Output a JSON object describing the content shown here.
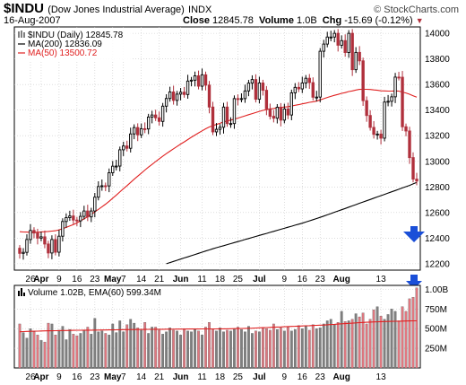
{
  "header": {
    "symbol": "$INDU",
    "name": "(Dow Jones Industrial Average)",
    "exchange": "INDX",
    "date": "16-Aug-2007",
    "close_label": "Close",
    "close_value": "12845.78",
    "volume_label": "Volume",
    "volume_value": "1.0B",
    "chg_label": "Chg",
    "chg_value": "-15.69 (-0.12%)",
    "brand": "© StockCharts.com"
  },
  "legend": {
    "price": "$INDU (Daily) 12845.78",
    "ma200": "MA(200) 12836.09",
    "ma50": "MA(50) 13500.72",
    "volume": "Volume 1.02B, EMA(60) 599.34M"
  },
  "colors": {
    "up": "#000000",
    "down": "#b0303c",
    "ma50": "#e02020",
    "ma200": "#000000",
    "vol_up": "#808080",
    "vol_down": "#e07880",
    "arrow": "#1a4fd8",
    "grid": "#c8c8c8"
  },
  "chart_data": [
    {
      "type": "candlestick",
      "title": "$INDU (Daily) 12845.78",
      "y_ticks": [
        12200,
        12400,
        12600,
        12800,
        13000,
        13200,
        13400,
        13600,
        13800,
        14000
      ],
      "ylim": [
        12150,
        14050
      ],
      "x_ticks": [
        "26",
        "Apr",
        "9",
        "16",
        "23",
        "May",
        "7",
        "14",
        "21",
        "Jun",
        "11",
        "18",
        "25",
        "Jul",
        "9",
        "16",
        "23",
        "Aug",
        "13"
      ],
      "x_tick_months": [
        "Apr",
        "May",
        "Jun",
        "Jul",
        "Aug"
      ],
      "close": [
        12281,
        12289,
        12389,
        12460,
        12440,
        12400,
        12410,
        12354,
        12284,
        12389,
        12290,
        12415,
        12530,
        12560,
        12573,
        12541,
        12535,
        12570,
        12612,
        12566,
        12612,
        12720,
        12803,
        12809,
        12808,
        12911,
        12962,
        12963,
        13090,
        13120,
        13102,
        13214,
        13264,
        13207,
        13255,
        13253,
        13346,
        13362,
        13340,
        13312,
        13431,
        13491,
        13542,
        13476,
        13525,
        13540,
        13522,
        13627,
        13634,
        13668,
        13587,
        13676,
        13595,
        13424,
        13230,
        13250,
        13266,
        13424,
        13295,
        13295,
        13490,
        13486,
        13490,
        13550,
        13611,
        13639,
        13485,
        13612,
        13555,
        13410,
        13352,
        13337,
        13422,
        13322,
        13409,
        13362,
        13535,
        13578,
        13566,
        13612,
        13649,
        13615,
        13501,
        13502,
        13860,
        13916,
        13971,
        13971,
        14000,
        13907,
        13943,
        13850,
        14000,
        13716,
        13851,
        13785,
        13474,
        13358,
        13265,
        13211,
        13213,
        13181,
        13463,
        13469,
        13504,
        13658,
        13657,
        13270,
        13237,
        13029,
        12861,
        12846
      ],
      "ma50": [
        12450,
        12448,
        12447,
        12445,
        12446,
        12446,
        12449,
        12450,
        12452,
        12455,
        12458,
        12465,
        12474,
        12484,
        12495,
        12506,
        12520,
        12534,
        12550,
        12567,
        12585,
        12605,
        12625,
        12645,
        12665,
        12688,
        12712,
        12736,
        12761,
        12786,
        12810,
        12835,
        12860,
        12884,
        12908,
        12932,
        12955,
        12976,
        12998,
        13019,
        13040,
        13060,
        13079,
        13098,
        13116,
        13135,
        13152,
        13170,
        13188,
        13205,
        13222,
        13238,
        13254,
        13268,
        13279,
        13288,
        13297,
        13308,
        13315,
        13322,
        13330,
        13338,
        13346,
        13355,
        13364,
        13373,
        13381,
        13390,
        13398,
        13404,
        13409,
        13413,
        13418,
        13421,
        13424,
        13427,
        13432,
        13438,
        13443,
        13449,
        13455,
        13461,
        13465,
        13470,
        13480,
        13489,
        13499,
        13507,
        13516,
        13523,
        13531,
        13537,
        13545,
        13550,
        13557,
        13562,
        13563,
        13563,
        13561,
        13558,
        13555,
        13551,
        13550,
        13549,
        13549,
        13550,
        13549,
        13541,
        13534,
        13524,
        13512,
        13501
      ],
      "ma200": [
        null,
        null,
        null,
        null,
        null,
        null,
        null,
        null,
        null,
        null,
        null,
        null,
        null,
        null,
        null,
        null,
        null,
        null,
        null,
        null,
        null,
        null,
        null,
        null,
        null,
        null,
        null,
        null,
        null,
        null,
        null,
        null,
        null,
        null,
        null,
        null,
        null,
        null,
        null,
        null,
        null,
        12200,
        12209,
        12218,
        12227,
        12236,
        12245,
        12254,
        12263,
        12272,
        12281,
        12290,
        12299,
        12308,
        12317,
        12325,
        12333,
        12341,
        12349,
        12357,
        12365,
        12373,
        12381,
        12389,
        12397,
        12405,
        12413,
        12421,
        12429,
        12437,
        12445,
        12453,
        12461,
        12469,
        12477,
        12485,
        12493,
        12501,
        12509,
        12517,
        12526,
        12535,
        12544,
        12553,
        12562,
        12572,
        12582,
        12592,
        12602,
        12612,
        12622,
        12632,
        12642,
        12652,
        12662,
        12672,
        12682,
        12692,
        12702,
        12712,
        12722,
        12732,
        12742,
        12752,
        12762,
        12772,
        12782,
        12792,
        12802,
        12812,
        12824,
        12836
      ]
    },
    {
      "type": "bar",
      "title": "Volume 1.02B, EMA(60) 599.34M",
      "y_ticks": [
        "250M",
        "500M",
        "750M",
        "1.00B"
      ],
      "ylim": [
        0,
        1050000000
      ],
      "volume": [
        560000000,
        450000000,
        380000000,
        500000000,
        460000000,
        420000000,
        350000000,
        330000000,
        570000000,
        560000000,
        420000000,
        480000000,
        530000000,
        360000000,
        490000000,
        430000000,
        410000000,
        440000000,
        480000000,
        520000000,
        430000000,
        630000000,
        460000000,
        470000000,
        440000000,
        420000000,
        560000000,
        450000000,
        600000000,
        460000000,
        550000000,
        620000000,
        570000000,
        510000000,
        480000000,
        580000000,
        440000000,
        520000000,
        520000000,
        480000000,
        430000000,
        460000000,
        510000000,
        480000000,
        470000000,
        420000000,
        500000000,
        470000000,
        460000000,
        490000000,
        470000000,
        420000000,
        520000000,
        580000000,
        500000000,
        470000000,
        510000000,
        460000000,
        480000000,
        470000000,
        500000000,
        520000000,
        490000000,
        460000000,
        530000000,
        440000000,
        470000000,
        460000000,
        510000000,
        500000000,
        480000000,
        560000000,
        490000000,
        510000000,
        470000000,
        520000000,
        470000000,
        490000000,
        540000000,
        500000000,
        530000000,
        480000000,
        550000000,
        500000000,
        510000000,
        560000000,
        600000000,
        620000000,
        550000000,
        580000000,
        720000000,
        590000000,
        600000000,
        620000000,
        690000000,
        650000000,
        700000000,
        560000000,
        620000000,
        740000000,
        780000000,
        660000000,
        620000000,
        680000000,
        750000000,
        720000000,
        600000000,
        780000000,
        720000000,
        880000000,
        900000000,
        1020000000
      ],
      "ema60": [
        460000000,
        462000000,
        464000000,
        466000000,
        467000000,
        468000000,
        470000000,
        471000000,
        472000000,
        473000000,
        474000000,
        475000000,
        476000000,
        476000000,
        477000000,
        478000000,
        479000000,
        479000000,
        480000000,
        481000000,
        481000000,
        482000000,
        482000000,
        483000000,
        483000000,
        484000000,
        484000000,
        485000000,
        486000000,
        487000000,
        487000000,
        488000000,
        489000000,
        489000000,
        490000000,
        490000000,
        491000000,
        491000000,
        492000000,
        492000000,
        492000000,
        493000000,
        493000000,
        493000000,
        494000000,
        494000000,
        494000000,
        495000000,
        495000000,
        495000000,
        495000000,
        496000000,
        496000000,
        497000000,
        497000000,
        497000000,
        498000000,
        498000000,
        498000000,
        499000000,
        500000000,
        501000000,
        502000000,
        503000000,
        505000000,
        506000000,
        508000000,
        510000000,
        512000000,
        514000000,
        516000000,
        518000000,
        520000000,
        522000000,
        524000000,
        526000000,
        528000000,
        530000000,
        532000000,
        534000000,
        536000000,
        538000000,
        540000000,
        542000000,
        544000000,
        546000000,
        549000000,
        552000000,
        555000000,
        558000000,
        561000000,
        564000000,
        567000000,
        570000000,
        573000000,
        576000000,
        579000000,
        581000000,
        583000000,
        585000000,
        587000000,
        589000000,
        590000000,
        591000000,
        592000000,
        594000000,
        595000000,
        596000000,
        597000000,
        598000000,
        599000000,
        599340000
      ]
    }
  ]
}
